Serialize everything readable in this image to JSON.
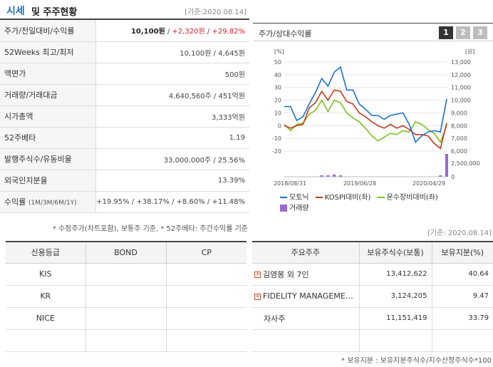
{
  "header": {
    "title_accent": "시세",
    "title_rest": "및 주주현황",
    "date": "[기준:2020.08.14]"
  },
  "quote_rows": [
    {
      "label": "주가/전일대비/수익률",
      "price": "10,100원",
      "change": "+2,320원",
      "pct": "+29.82%"
    },
    {
      "label": "52Weeks 최고/최저",
      "value": "10,100원 / 4,645원"
    },
    {
      "label": "액면가",
      "value": "500원"
    },
    {
      "label": "거래량/거래대금",
      "value": "4,640,560주 / 451억원"
    },
    {
      "label": "시가총액",
      "value": "3,333억원"
    },
    {
      "label": "52주베타",
      "value": "1.19"
    },
    {
      "label": "발행주식수/유동비율",
      "value": "33,000,000주 / 25.56%"
    },
    {
      "label": "외국인지분율",
      "value": "13.39%"
    },
    {
      "label": "수익률",
      "label_small": "(1M/3M/6M/1Y)",
      "value": "+19.95% / +38.17% / +8.60% / +11.48%"
    }
  ],
  "note1": "* 수정주가(차트포함), 보통주 기준, * 52주베타: 주간수익률 기준",
  "chart_panel": {
    "title": "주가/상대수익률",
    "tabs": [
      "1",
      "2",
      "3"
    ],
    "active_tab": 0
  },
  "chart_data": {
    "type": "line",
    "left_unit": "[%]",
    "right_unit": "[원]",
    "left_ticks": [
      "50",
      "40",
      "30",
      "20",
      "10",
      "0",
      "-10",
      "-20"
    ],
    "right_ticks": [
      "13,000",
      "12,000",
      "11,000",
      "10,000",
      "9,000",
      "8,000",
      "7,000",
      "6,000"
    ],
    "volume_ticks": [
      "2,500,000",
      "0"
    ],
    "x_ticks": [
      "2018/08/31",
      "2019/06/28",
      "2020/04/29"
    ],
    "ylim": [
      -20,
      50
    ],
    "series": [
      {
        "name": "모토닉",
        "color": "#1a6fd6",
        "values": [
          15,
          15,
          4,
          7,
          17,
          26,
          37,
          31,
          42,
          46,
          28,
          28,
          17,
          13,
          8,
          8,
          5,
          8,
          9,
          10,
          1,
          -13,
          -8,
          -5,
          -4,
          -5,
          21
        ]
      },
      {
        "name": "KOSPI대비(좌)",
        "color": "#c8381c",
        "values": [
          0,
          -2,
          0,
          1,
          14,
          18,
          27,
          20,
          28,
          27,
          19,
          17,
          10,
          7,
          3,
          0,
          -2,
          1,
          -2,
          0,
          -3,
          -7,
          -7,
          -8,
          -14,
          -18,
          2
        ]
      },
      {
        "name": "운수장비대비(좌)",
        "color": "#7cc21a",
        "values": [
          1,
          -4,
          1,
          2,
          9,
          12,
          20,
          11,
          20,
          18,
          10,
          6,
          3,
          -2,
          -8,
          -12,
          -9,
          -6,
          -7,
          -4,
          -5,
          3,
          1,
          -3,
          -6,
          -13,
          0
        ]
      }
    ],
    "volume": {
      "name": "거래량",
      "color": "#9a6bd1",
      "values": [
        0,
        0,
        0,
        0,
        0,
        0,
        0.05,
        0.03,
        0.1,
        0.06,
        0,
        0,
        0,
        0,
        0,
        0,
        0,
        0,
        0,
        0,
        0,
        0,
        0,
        0,
        0,
        0.03,
        1
      ]
    }
  },
  "date2": "[기준: 2020.08.14]",
  "credit": {
    "headers": [
      "신용등급",
      "BOND",
      "CP"
    ],
    "rows": [
      [
        "KIS",
        "",
        ""
      ],
      [
        "KR",
        "",
        ""
      ],
      [
        "NICE",
        "",
        ""
      ],
      [
        "",
        "",
        ""
      ]
    ]
  },
  "holders": {
    "headers": [
      "주요주주",
      "보유주식수(보통)",
      "보유지분(%)"
    ],
    "rows": [
      {
        "name": "김영봉 외 7인",
        "expand": true,
        "shares": "13,412,622",
        "pct": "40.64"
      },
      {
        "name": "FIDELITY MANAGEME…",
        "expand": true,
        "shares": "3,124,205",
        "pct": "9.47"
      },
      {
        "name": "자사주",
        "expand": false,
        "shares": "11,151,419",
        "pct": "33.79"
      },
      {
        "name": "",
        "expand": false,
        "shares": "",
        "pct": ""
      }
    ]
  },
  "note2": "* 보유지분 : 보유지분주식수/지수산정주식수*100"
}
